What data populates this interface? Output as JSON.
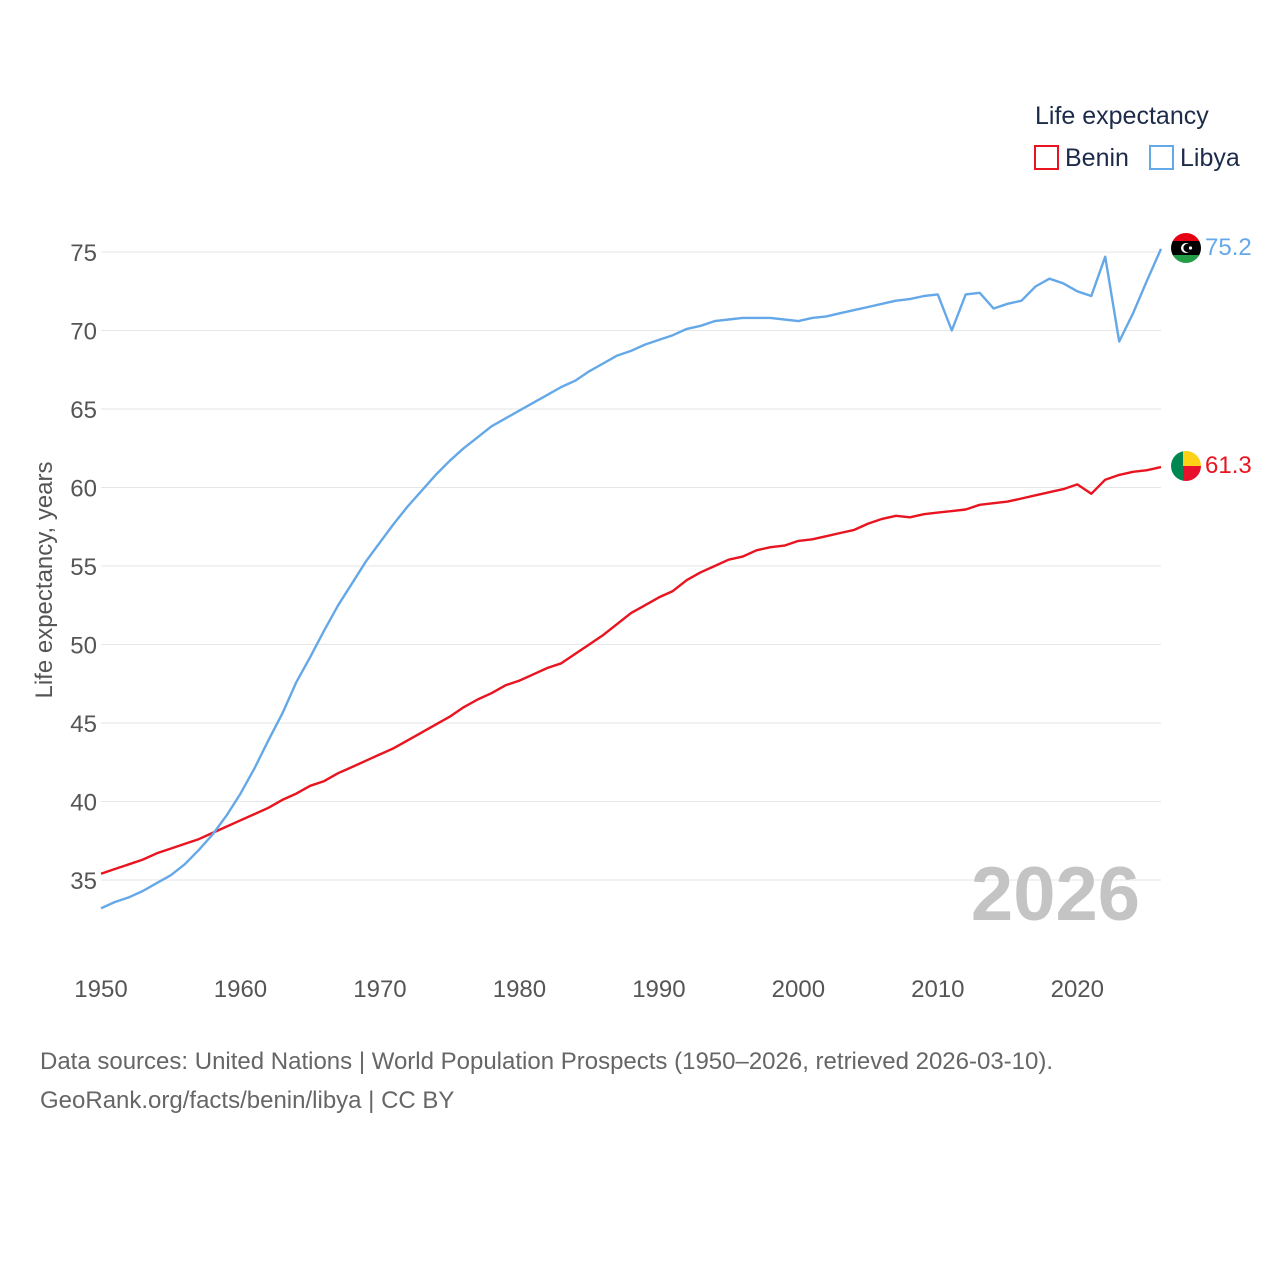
{
  "chart_data": {
    "type": "line",
    "title": "",
    "xlabel": "",
    "ylabel": "Life expectancy, years",
    "xlim": [
      1950,
      2026
    ],
    "ylim": [
      32,
      77
    ],
    "xticks": [
      1950,
      1960,
      1970,
      1980,
      1990,
      2000,
      2010,
      2020
    ],
    "yticks": [
      35,
      40,
      45,
      50,
      55,
      60,
      65,
      70,
      75
    ],
    "grid": true,
    "legend_title": "Life expectancy",
    "legend_position": "top-right",
    "year_stamp": "2026",
    "x": [
      1950,
      1951,
      1952,
      1953,
      1954,
      1955,
      1956,
      1957,
      1958,
      1959,
      1960,
      1961,
      1962,
      1963,
      1964,
      1965,
      1966,
      1967,
      1968,
      1969,
      1970,
      1971,
      1972,
      1973,
      1974,
      1975,
      1976,
      1977,
      1978,
      1979,
      1980,
      1981,
      1982,
      1983,
      1984,
      1985,
      1986,
      1987,
      1988,
      1989,
      1990,
      1991,
      1992,
      1993,
      1994,
      1995,
      1996,
      1997,
      1998,
      1999,
      2000,
      2001,
      2002,
      2003,
      2004,
      2005,
      2006,
      2007,
      2008,
      2009,
      2010,
      2011,
      2012,
      2013,
      2014,
      2015,
      2016,
      2017,
      2018,
      2019,
      2020,
      2021,
      2022,
      2023,
      2024,
      2025,
      2026
    ],
    "series": [
      {
        "name": "Benin",
        "color": "#e8141f",
        "end_label": "61.3",
        "flag": "benin-flag",
        "values": [
          35.4,
          35.7,
          36.0,
          36.3,
          36.7,
          37.0,
          37.3,
          37.6,
          38.0,
          38.4,
          38.8,
          39.2,
          39.6,
          40.1,
          40.5,
          41.0,
          41.3,
          41.8,
          42.2,
          42.6,
          43.0,
          43.4,
          43.9,
          44.4,
          44.9,
          45.4,
          46.0,
          46.5,
          46.9,
          47.4,
          47.7,
          48.1,
          48.5,
          48.8,
          49.4,
          50.0,
          50.6,
          51.3,
          52.0,
          52.5,
          53.0,
          53.4,
          54.1,
          54.6,
          55.0,
          55.4,
          55.6,
          56.0,
          56.2,
          56.3,
          56.6,
          56.7,
          56.9,
          57.1,
          57.3,
          57.7,
          58.0,
          58.2,
          58.1,
          58.3,
          58.4,
          58.5,
          58.6,
          58.9,
          59.0,
          59.1,
          59.3,
          59.5,
          59.7,
          59.9,
          60.2,
          59.6,
          60.5,
          60.8,
          61.0,
          61.1,
          61.3
        ]
      },
      {
        "name": "Libya",
        "color": "#65a8e8",
        "end_label": "75.2",
        "flag": "libya-flag",
        "values": [
          33.2,
          33.6,
          33.9,
          34.3,
          34.8,
          35.3,
          36.0,
          36.9,
          37.9,
          39.1,
          40.5,
          42.1,
          43.9,
          45.6,
          47.6,
          49.2,
          50.9,
          52.5,
          53.9,
          55.3,
          56.5,
          57.7,
          58.8,
          59.8,
          60.8,
          61.7,
          62.5,
          63.2,
          63.9,
          64.4,
          64.9,
          65.4,
          65.9,
          66.4,
          66.8,
          67.4,
          67.9,
          68.4,
          68.7,
          69.1,
          69.4,
          69.7,
          70.1,
          70.3,
          70.6,
          70.7,
          70.8,
          70.8,
          70.8,
          70.7,
          70.6,
          70.8,
          70.9,
          71.1,
          71.3,
          71.5,
          71.7,
          71.9,
          72.0,
          72.2,
          72.3,
          70.0,
          72.3,
          72.4,
          71.4,
          71.7,
          71.9,
          72.8,
          73.3,
          73.0,
          72.5,
          72.2,
          74.7,
          69.3,
          71.1,
          73.2,
          75.2
        ]
      }
    ]
  },
  "footer": {
    "source_line": "Data sources: United Nations | World Population Prospects (1950–2026, retrieved 2026-03-10).",
    "credit_line": "GeoRank.org/facts/benin/libya | CC BY"
  }
}
